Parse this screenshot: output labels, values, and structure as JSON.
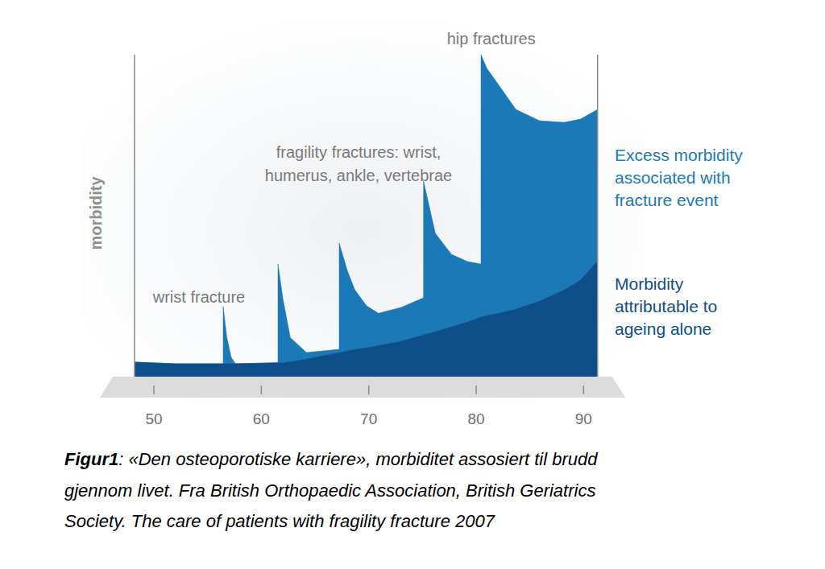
{
  "chart_data": {
    "type": "area",
    "stacked": true,
    "grid": false,
    "tick_labels": "x",
    "legend": "right",
    "y_label": "morbidity",
    "xlim": [
      48.2,
      91.3
    ],
    "ylim": [
      0,
      100
    ],
    "xticks": [
      50,
      60,
      70,
      80,
      90
    ],
    "x": [
      48.2,
      52,
      56.45,
      56.45,
      56.8,
      57.2,
      57.6,
      61.55,
      61.55,
      62,
      62.7,
      64.2,
      67.25,
      67.25,
      68,
      68.7,
      69.8,
      70.9,
      73,
      75.1,
      75.1,
      76.2,
      77.7,
      79.2,
      80.45,
      80.45,
      81,
      81.8,
      83.7,
      85.9,
      88.2,
      89.7,
      91.3
    ],
    "series": [
      {
        "name": "Morbidity attributable to ageing alone",
        "color": "#0d4e8b",
        "values": [
          4.5,
          4,
          4,
          4,
          4,
          4,
          4,
          4.3,
          4.3,
          4.4,
          4.6,
          5.5,
          7.5,
          7.5,
          8,
          8.5,
          9,
          9.7,
          11,
          13,
          13,
          14,
          15.5,
          17,
          18.5,
          18.5,
          19,
          19.5,
          21,
          23.5,
          27,
          30,
          36
        ]
      },
      {
        "name": "Excess morbidity associated with fracture event",
        "color": "#1b79b8",
        "values": [
          0,
          0,
          0,
          17.75,
          8,
          2,
          0,
          0,
          30.7,
          20,
          7.5,
          2,
          1,
          34,
          25,
          18.5,
          13,
          10,
          10.5,
          11.5,
          47.75,
          30.5,
          22.5,
          18.75,
          16.5,
          81.5,
          76.75,
          72.5,
          62,
          56,
          52,
          50,
          47
        ]
      }
    ],
    "annotations": [
      {
        "text": "wrist fracture",
        "x": 54.2,
        "y": 23
      },
      {
        "text": "fragility fractures: wrist, humerus, ankle, vertebrae",
        "x": 69.05,
        "y": 68
      },
      {
        "text": "hip fractures",
        "x": 81.4,
        "y": 103.25
      }
    ]
  },
  "caption": {
    "label": "Figur1",
    "lines": [
      ": «Den osteoporotiske karriere», morbiditet assosiert til brudd",
      "gjennom livet. Fra British Orthopaedic Association, British Geriatrics",
      "Society. The care of patients with fragility fracture 2007"
    ]
  }
}
